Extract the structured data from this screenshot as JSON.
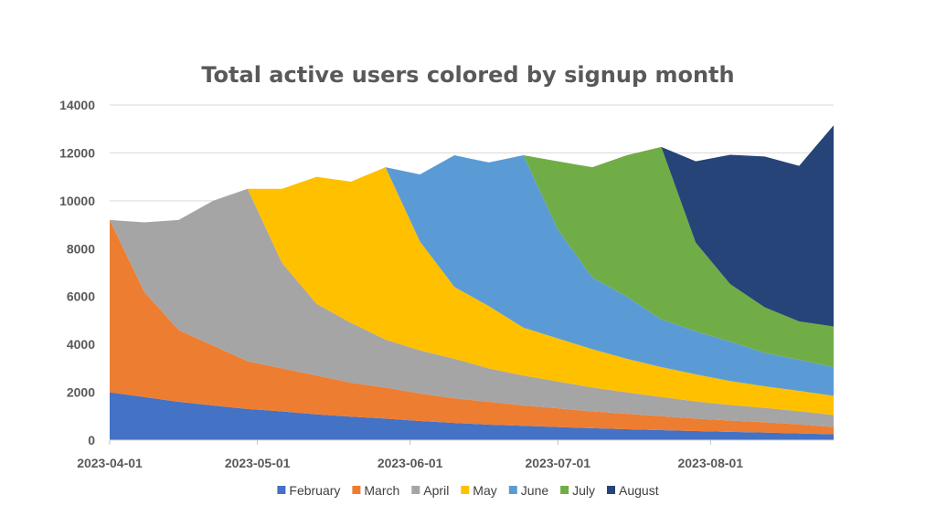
{
  "chart_data": {
    "type": "area",
    "stacked": true,
    "title": "Total active users colored by signup month",
    "xlabel": "",
    "ylabel": "",
    "ylim": [
      0,
      14000
    ],
    "yticks": [
      0,
      2000,
      4000,
      6000,
      8000,
      10000,
      12000,
      14000
    ],
    "xtick_labels": [
      "2023-04-01",
      "2023-05-01",
      "2023-06-01",
      "2023-07-01",
      "2023-08-01"
    ],
    "x": [
      "2023-04-01",
      "2023-04-08",
      "2023-04-15",
      "2023-04-22",
      "2023-04-29",
      "2023-05-06",
      "2023-05-13",
      "2023-05-20",
      "2023-05-27",
      "2023-06-03",
      "2023-06-10",
      "2023-06-17",
      "2023-06-24",
      "2023-07-01",
      "2023-07-08",
      "2023-07-15",
      "2023-07-22",
      "2023-07-29",
      "2023-08-05",
      "2023-08-12",
      "2023-08-19",
      "2023-08-26"
    ],
    "grid": true,
    "legend_position": "bottom",
    "series": [
      {
        "name": "February",
        "color": "#4472c4",
        "values": [
          2000,
          1800,
          1600,
          1450,
          1300,
          1200,
          1080,
          980,
          900,
          800,
          720,
          650,
          600,
          550,
          500,
          460,
          420,
          380,
          350,
          320,
          280,
          250
        ]
      },
      {
        "name": "March",
        "color": "#ed7d31",
        "values": [
          7200,
          4400,
          3000,
          2500,
          2000,
          1800,
          1620,
          1420,
          1300,
          1150,
          1030,
          950,
          850,
          780,
          700,
          640,
          580,
          520,
          470,
          430,
          380,
          300
        ]
      },
      {
        "name": "April",
        "color": "#a5a5a5",
        "values": [
          0,
          2900,
          4600,
          6050,
          7200,
          4400,
          3000,
          2500,
          2000,
          1800,
          1650,
          1400,
          1250,
          1120,
          1000,
          900,
          800,
          720,
          650,
          600,
          550,
          500
        ]
      },
      {
        "name": "May",
        "color": "#ffc000",
        "values": [
          0,
          0,
          0,
          0,
          0,
          3100,
          5300,
          5900,
          7200,
          4550,
          3000,
          2600,
          2000,
          1800,
          1600,
          1400,
          1250,
          1130,
          1000,
          900,
          850,
          800
        ]
      },
      {
        "name": "June",
        "color": "#5b9bd5",
        "values": [
          0,
          0,
          0,
          0,
          0,
          0,
          0,
          0,
          0,
          2800,
          5500,
          6000,
          7200,
          4550,
          3000,
          2600,
          2000,
          1800,
          1650,
          1400,
          1300,
          1200
        ]
      },
      {
        "name": "July",
        "color": "#70ad47",
        "values": [
          0,
          0,
          0,
          0,
          0,
          0,
          0,
          0,
          0,
          0,
          0,
          0,
          0,
          2850,
          4600,
          5900,
          7200,
          3700,
          2400,
          1900,
          1600,
          1700
        ]
      },
      {
        "name": "August",
        "color": "#264478",
        "values": [
          0,
          0,
          0,
          0,
          0,
          0,
          0,
          0,
          0,
          0,
          0,
          0,
          0,
          0,
          0,
          0,
          0,
          3400,
          5400,
          6300,
          6500,
          8400
        ]
      }
    ]
  }
}
